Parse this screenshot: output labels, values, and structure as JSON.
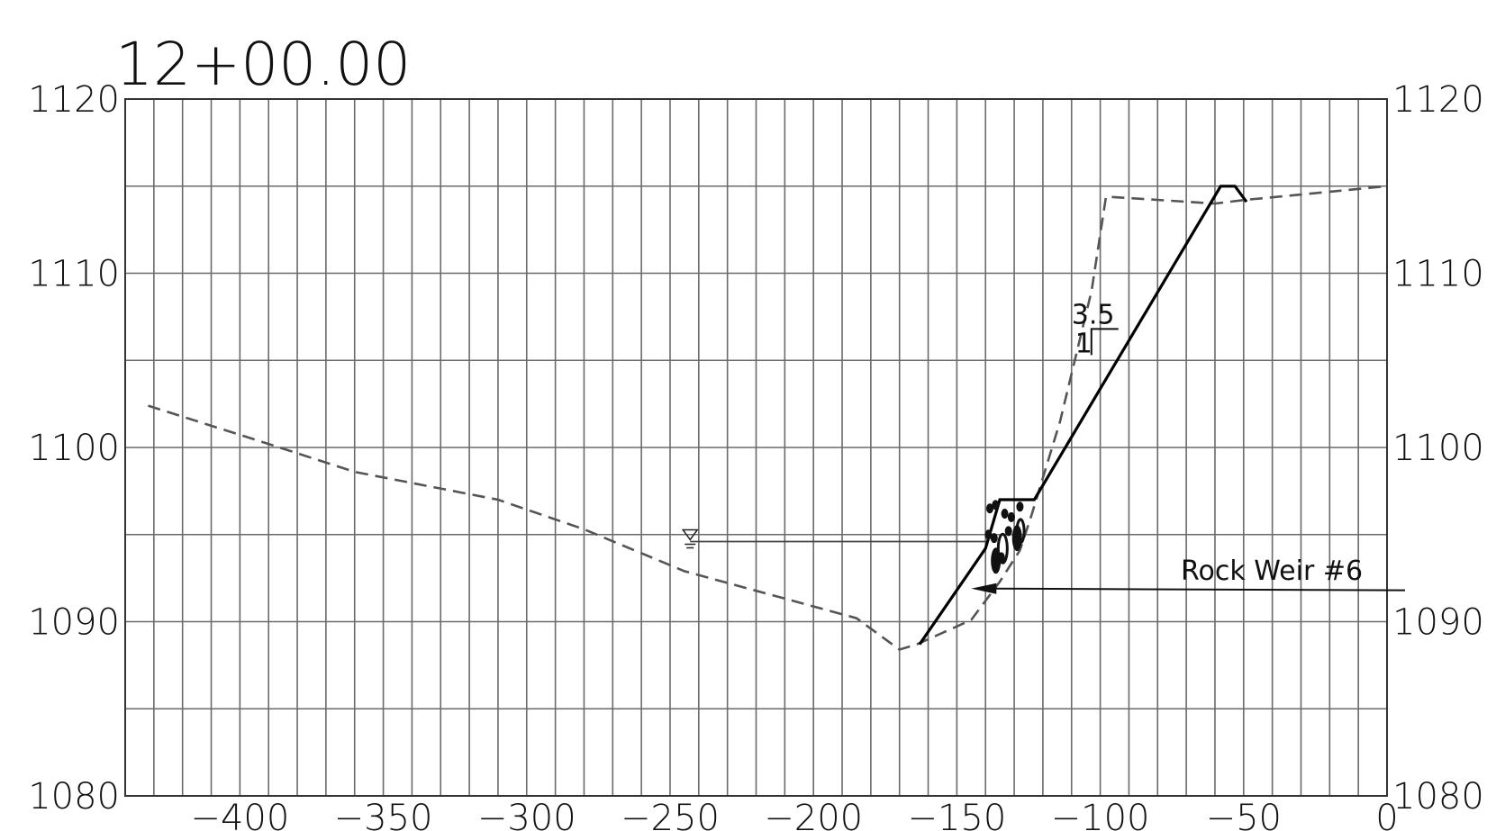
{
  "chart_data": {
    "type": "line",
    "title": "12+00.00",
    "xlabel": "",
    "ylabel": "",
    "xlim": [
      -440,
      0
    ],
    "ylim": [
      1080,
      1120
    ],
    "x_ticks": [
      -400,
      -350,
      -300,
      -250,
      -200,
      -150,
      -100,
      -50,
      0
    ],
    "x_tick_labels": [
      "−400",
      "−350",
      "−300",
      "−250",
      "−200",
      "−150",
      "−100",
      "−50",
      "0"
    ],
    "y_ticks": [
      1080,
      1090,
      1100,
      1110,
      1120
    ],
    "y_tick_labels": [
      "1080",
      "1090",
      "1100",
      "1110",
      "1120"
    ],
    "grid": true,
    "grid_minor_x": 10,
    "grid_minor_y": 5,
    "series": [
      {
        "style": "dashed",
        "color": "#555555",
        "x": [
          -432,
          -390,
          -360,
          -310,
          -280,
          -245,
          -185,
          -170,
          -164,
          -145,
          -135,
          -128,
          -124,
          -114,
          -103,
          -98,
          -60,
          -50,
          0
        ],
        "y": [
          1102.4,
          1100.2,
          1098.6,
          1097,
          1095.3,
          1092.9,
          1090.2,
          1088.4,
          1088.7,
          1090.1,
          1092.3,
          1094.1,
          1096.1,
          1101.5,
          1109,
          1114.4,
          1114,
          1114.2,
          1115
        ]
      },
      {
        "style": "solid",
        "color": "#000000",
        "x": [
          -163,
          -140,
          -135,
          -123,
          -58,
          -53,
          -49
        ],
        "y": [
          1088.7,
          1094.2,
          1097,
          1097,
          1115,
          1115,
          1114.1
        ]
      }
    ],
    "water_surface": {
      "elevation": 1094.6,
      "x_from": -243,
      "x_to": -140
    },
    "slope_label": {
      "run": "3.5",
      "rise": "1"
    },
    "annotations": [
      {
        "text": "Rock Weir #6",
        "arrow_to": [
          -145,
          1091.9
        ]
      }
    ]
  }
}
